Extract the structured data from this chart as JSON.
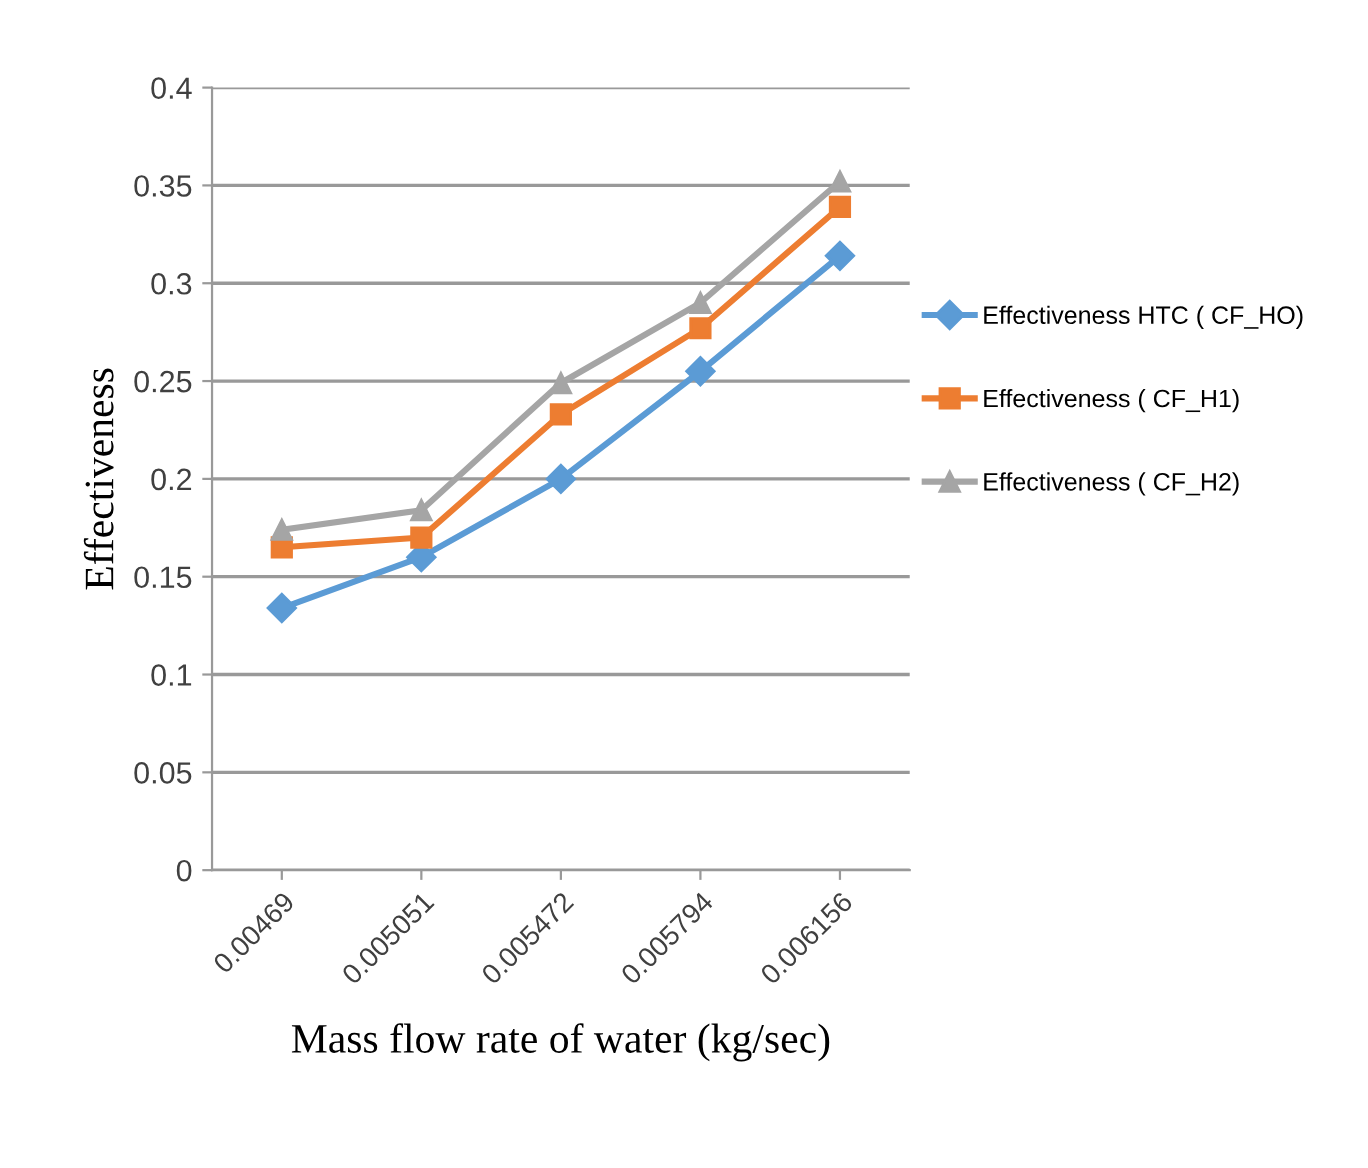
{
  "chart_data": {
    "type": "line",
    "xlabel": "Mass flow rate of water (kg/sec)",
    "ylabel": "Effectiveness",
    "categories": [
      "0.00469",
      "0.005051",
      "0.005472",
      "0.005794",
      "0.006156"
    ],
    "series": [
      {
        "name": "Effectiveness HTC ( CF_HO)",
        "color": "#5b9bd5",
        "marker": "diamond",
        "values": [
          0.134,
          0.16,
          0.2,
          0.255,
          0.314
        ]
      },
      {
        "name": "Effectiveness ( CF_H1)",
        "color": "#ed7d31",
        "marker": "square",
        "values": [
          0.165,
          0.17,
          0.233,
          0.277,
          0.339
        ]
      },
      {
        "name": "Effectiveness ( CF_H2)",
        "color": "#a5a5a5",
        "marker": "triangle",
        "values": [
          0.174,
          0.184,
          0.249,
          0.29,
          0.352
        ]
      }
    ],
    "ylim": [
      0,
      0.4
    ],
    "yticks": [
      0,
      0.05,
      0.1,
      0.15,
      0.2,
      0.25,
      0.3,
      0.35,
      0.4
    ],
    "grid": "y",
    "legend": "right"
  }
}
